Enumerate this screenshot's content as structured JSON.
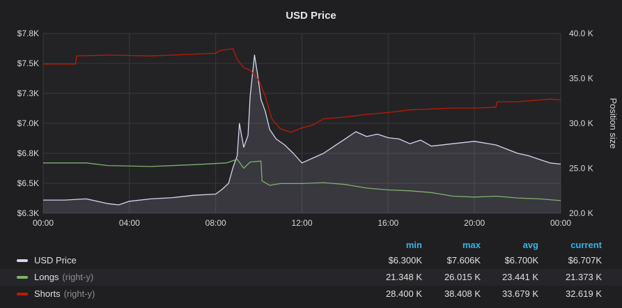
{
  "chart_data": {
    "type": "line",
    "title": "USD Price",
    "y_left": {
      "ticks": [
        "$6.3K",
        "$6.5K",
        "$6.8K",
        "$7.0K",
        "$7.3K",
        "$7.5K",
        "$7.8K"
      ],
      "ylim": [
        6.3,
        7.8
      ]
    },
    "y_right": {
      "label": "Position size",
      "ticks": [
        "20.0 K",
        "25.0 K",
        "30.0 K",
        "35.0 K",
        "40.0 K"
      ],
      "ylim": [
        20,
        40
      ]
    },
    "x": {
      "ticks": [
        "00:00",
        "04:00",
        "08:00",
        "12:00",
        "16:00",
        "20:00",
        "00:00"
      ],
      "range_hours": [
        0,
        24
      ]
    },
    "grid": true,
    "series": [
      {
        "name": "USD Price",
        "axis": "left",
        "color": "#d6d6f0",
        "fill": true,
        "points": [
          [
            0,
            6.41
          ],
          [
            1,
            6.41
          ],
          [
            2,
            6.42
          ],
          [
            3,
            6.38
          ],
          [
            3.5,
            6.37
          ],
          [
            4,
            6.4
          ],
          [
            5,
            6.42
          ],
          [
            6,
            6.43
          ],
          [
            7,
            6.45
          ],
          [
            8,
            6.46
          ],
          [
            8.3,
            6.5
          ],
          [
            8.6,
            6.55
          ],
          [
            8.8,
            6.68
          ],
          [
            9.0,
            6.78
          ],
          [
            9.1,
            7.05
          ],
          [
            9.3,
            6.85
          ],
          [
            9.5,
            6.95
          ],
          [
            9.6,
            7.28
          ],
          [
            9.8,
            7.62
          ],
          [
            9.95,
            7.45
          ],
          [
            10.1,
            7.25
          ],
          [
            10.3,
            7.15
          ],
          [
            10.5,
            7.0
          ],
          [
            10.8,
            6.92
          ],
          [
            11.2,
            6.87
          ],
          [
            11.6,
            6.8
          ],
          [
            12.0,
            6.72
          ],
          [
            12.5,
            6.76
          ],
          [
            13.0,
            6.8
          ],
          [
            13.5,
            6.86
          ],
          [
            14.0,
            6.92
          ],
          [
            14.5,
            6.98
          ],
          [
            15.0,
            6.94
          ],
          [
            15.5,
            6.96
          ],
          [
            16.0,
            6.93
          ],
          [
            16.5,
            6.92
          ],
          [
            17.0,
            6.88
          ],
          [
            17.5,
            6.91
          ],
          [
            18.0,
            6.86
          ],
          [
            19.0,
            6.88
          ],
          [
            20.0,
            6.9
          ],
          [
            21.0,
            6.87
          ],
          [
            22.0,
            6.8
          ],
          [
            22.5,
            6.78
          ],
          [
            23.0,
            6.75
          ],
          [
            23.5,
            6.72
          ],
          [
            24.0,
            6.71
          ]
        ]
      },
      {
        "name": "Longs",
        "suffix": "(right-y)",
        "axis": "right",
        "color": "#7eb26d",
        "points": [
          [
            0,
            25.6
          ],
          [
            2,
            25.6
          ],
          [
            3,
            25.3
          ],
          [
            5,
            25.2
          ],
          [
            7,
            25.4
          ],
          [
            8.5,
            25.6
          ],
          [
            9.0,
            26.0
          ],
          [
            9.3,
            25.0
          ],
          [
            9.6,
            25.7
          ],
          [
            10.1,
            25.8
          ],
          [
            10.15,
            23.6
          ],
          [
            10.5,
            23.1
          ],
          [
            11,
            23.3
          ],
          [
            12,
            23.3
          ],
          [
            13,
            23.4
          ],
          [
            14,
            23.2
          ],
          [
            15,
            22.8
          ],
          [
            16,
            22.6
          ],
          [
            17,
            22.5
          ],
          [
            18,
            22.3
          ],
          [
            19,
            21.9
          ],
          [
            20,
            21.8
          ],
          [
            21,
            21.9
          ],
          [
            22,
            21.7
          ],
          [
            23,
            21.6
          ],
          [
            24,
            21.4
          ]
        ]
      },
      {
        "name": "Shorts",
        "suffix": "(right-y)",
        "axis": "right",
        "color": "#bf1b00",
        "points": [
          [
            0,
            36.6
          ],
          [
            1.5,
            36.6
          ],
          [
            1.55,
            37.5
          ],
          [
            3,
            37.6
          ],
          [
            5,
            37.5
          ],
          [
            6,
            37.6
          ],
          [
            8,
            37.8
          ],
          [
            8.2,
            38.1
          ],
          [
            8.8,
            38.3
          ],
          [
            9.0,
            37.1
          ],
          [
            9.3,
            36.2
          ],
          [
            9.6,
            35.9
          ],
          [
            10.0,
            34.8
          ],
          [
            10.3,
            33.0
          ],
          [
            10.6,
            30.5
          ],
          [
            11.0,
            29.4
          ],
          [
            11.5,
            29.0
          ],
          [
            12.0,
            29.5
          ],
          [
            12.5,
            29.8
          ],
          [
            13,
            30.5
          ],
          [
            14,
            30.7
          ],
          [
            15,
            31.0
          ],
          [
            16,
            31.2
          ],
          [
            17,
            31.5
          ],
          [
            18,
            31.6
          ],
          [
            19,
            31.7
          ],
          [
            20,
            31.7
          ],
          [
            21,
            31.8
          ],
          [
            21.05,
            32.4
          ],
          [
            22,
            32.4
          ],
          [
            23,
            32.6
          ],
          [
            23.5,
            32.7
          ],
          [
            24,
            32.6
          ]
        ]
      }
    ],
    "legend": {
      "columns": [
        "min",
        "max",
        "avg",
        "current"
      ],
      "rows": [
        {
          "name": "USD Price",
          "suffix": "",
          "color": "#d6d6f0",
          "min": "$6.300K",
          "max": "$7.606K",
          "avg": "$6.700K",
          "current": "$6.707K"
        },
        {
          "name": "Longs",
          "suffix": "(right-y)",
          "color": "#7eb26d",
          "min": "21.348 K",
          "max": "26.015 K",
          "avg": "23.441 K",
          "current": "21.373 K"
        },
        {
          "name": "Shorts",
          "suffix": "(right-y)",
          "color": "#bf1b00",
          "min": "28.400 K",
          "max": "38.408 K",
          "avg": "33.679 K",
          "current": "32.619 K"
        }
      ]
    }
  }
}
